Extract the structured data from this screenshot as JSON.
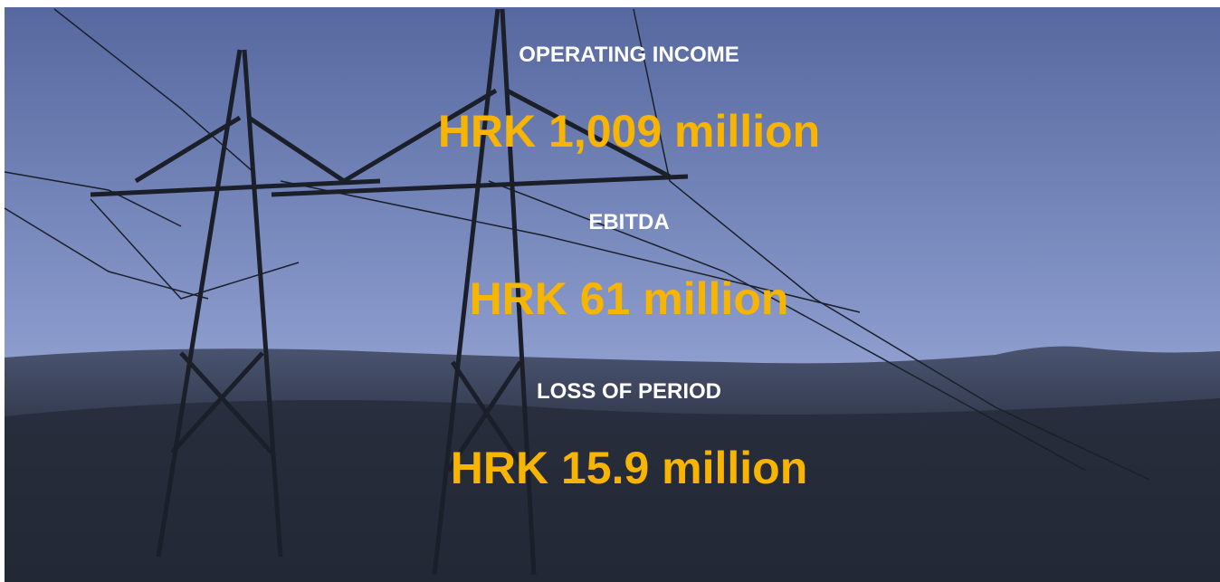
{
  "items": [
    {
      "label": "OPERATING INCOME",
      "value": "HRK 1,009 million"
    },
    {
      "label": "EBITDA",
      "value": "HRK 61 million"
    },
    {
      "label": "LOSS OF PERIOD",
      "value": "HRK 15.9 million"
    }
  ]
}
